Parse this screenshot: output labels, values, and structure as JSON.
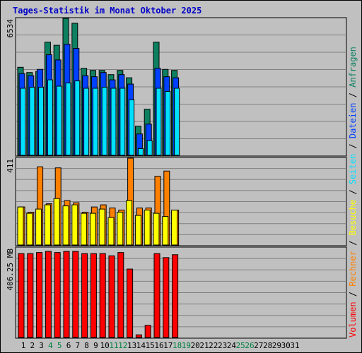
{
  "title": "Tages-Statistik im Monat Oktober 2025",
  "colors": {
    "anfragen": "#0c8060",
    "dateien": "#0040ff",
    "seiten": "#00e0ff",
    "besuche": "#ffff00",
    "rechner": "#ff8000",
    "volumen": "#ff0000",
    "weekend_label": "#008040",
    "background": "#c0c0c0"
  },
  "chart_data": {
    "type": "bar",
    "x": [
      "1",
      "2",
      "3",
      "4",
      "5",
      "6",
      "7",
      "8",
      "9",
      "10",
      "11",
      "12",
      "13",
      "14",
      "15",
      "16",
      "17",
      "18",
      "19",
      "20",
      "21",
      "22",
      "23",
      "24",
      "25",
      "26",
      "27",
      "28",
      "29",
      "30",
      "31"
    ],
    "weekend_days": [
      "4",
      "5",
      "11",
      "12",
      "18",
      "19",
      "25",
      "26"
    ],
    "legend_placement": "right",
    "panels": [
      {
        "ylabel": "6534",
        "ylim": [
          0,
          6534
        ],
        "series": [
          {
            "name": "Anfragen",
            "key": "anfragen",
            "values": [
              4200,
              3950,
              4000,
              5400,
              5250,
              6534,
              6300,
              4150,
              4050,
              4050,
              3850,
              4050,
              3700,
              1390,
              2200,
              5400,
              4100,
              4050,
              null,
              null,
              null,
              null,
              null,
              null,
              null,
              null,
              null,
              null,
              null,
              null,
              null
            ]
          },
          {
            "name": "Dateien",
            "key": "dateien",
            "values": [
              3900,
              3800,
              4100,
              4800,
              4550,
              5300,
              5100,
              3800,
              3750,
              3950,
              3600,
              3850,
              3400,
              1020,
              1490,
              4150,
              3750,
              3700,
              null,
              null,
              null,
              null,
              null,
              null,
              null,
              null,
              null,
              null,
              null,
              null,
              null
            ]
          },
          {
            "name": "Seiten",
            "key": "seiten",
            "values": [
              3200,
              3250,
              3250,
              3600,
              3300,
              3450,
              3550,
              3200,
              3200,
              3250,
              3200,
              3200,
              2650,
              320,
              700,
              3200,
              3050,
              3200,
              null,
              null,
              null,
              null,
              null,
              null,
              null,
              null,
              null,
              null,
              null,
              null,
              null
            ]
          }
        ]
      },
      {
        "ylabel": "411",
        "ylim": [
          0,
          411
        ],
        "series": [
          {
            "name": "Rechner",
            "key": "rechner",
            "values": [
              180,
              155,
              370,
              195,
              365,
              210,
              200,
              155,
              180,
              190,
              175,
              165,
              411,
              175,
              175,
              325,
              350,
              165,
              null,
              null,
              null,
              null,
              null,
              null,
              null,
              null,
              null,
              null,
              null,
              null,
              null
            ]
          },
          {
            "name": "Besuche",
            "key": "besuche",
            "values": [
              180,
              150,
              170,
              190,
              220,
              185,
              190,
              150,
              150,
              170,
              130,
              155,
              210,
              140,
              165,
              150,
              135,
              165,
              null,
              null,
              null,
              null,
              null,
              null,
              null,
              null,
              null,
              null,
              null,
              null,
              null
            ]
          }
        ]
      },
      {
        "ylabel": "406.25 MB",
        "ylim": [
          0,
          406.25
        ],
        "series": [
          {
            "name": "Volumen",
            "key": "volumen",
            "values": [
              380,
              380,
              385,
              390,
              385,
              390,
              390,
              380,
              380,
              380,
              370,
              385,
              310,
              12,
              55,
              380,
              362,
              375,
              null,
              null,
              null,
              null,
              null,
              null,
              null,
              null,
              null,
              null,
              null,
              null,
              null
            ]
          }
        ]
      }
    ],
    "legend": [
      {
        "label": "Volumen",
        "key": "volumen"
      },
      {
        "label": "Rechner",
        "key": "rechner"
      },
      {
        "label": "Besuche",
        "key": "besuche"
      },
      {
        "label": "Seiten",
        "key": "seiten"
      },
      {
        "label": "Dateien",
        "key": "dateien"
      },
      {
        "label": "Anfragen",
        "key": "anfragen"
      }
    ],
    "legend_separator": " / "
  }
}
